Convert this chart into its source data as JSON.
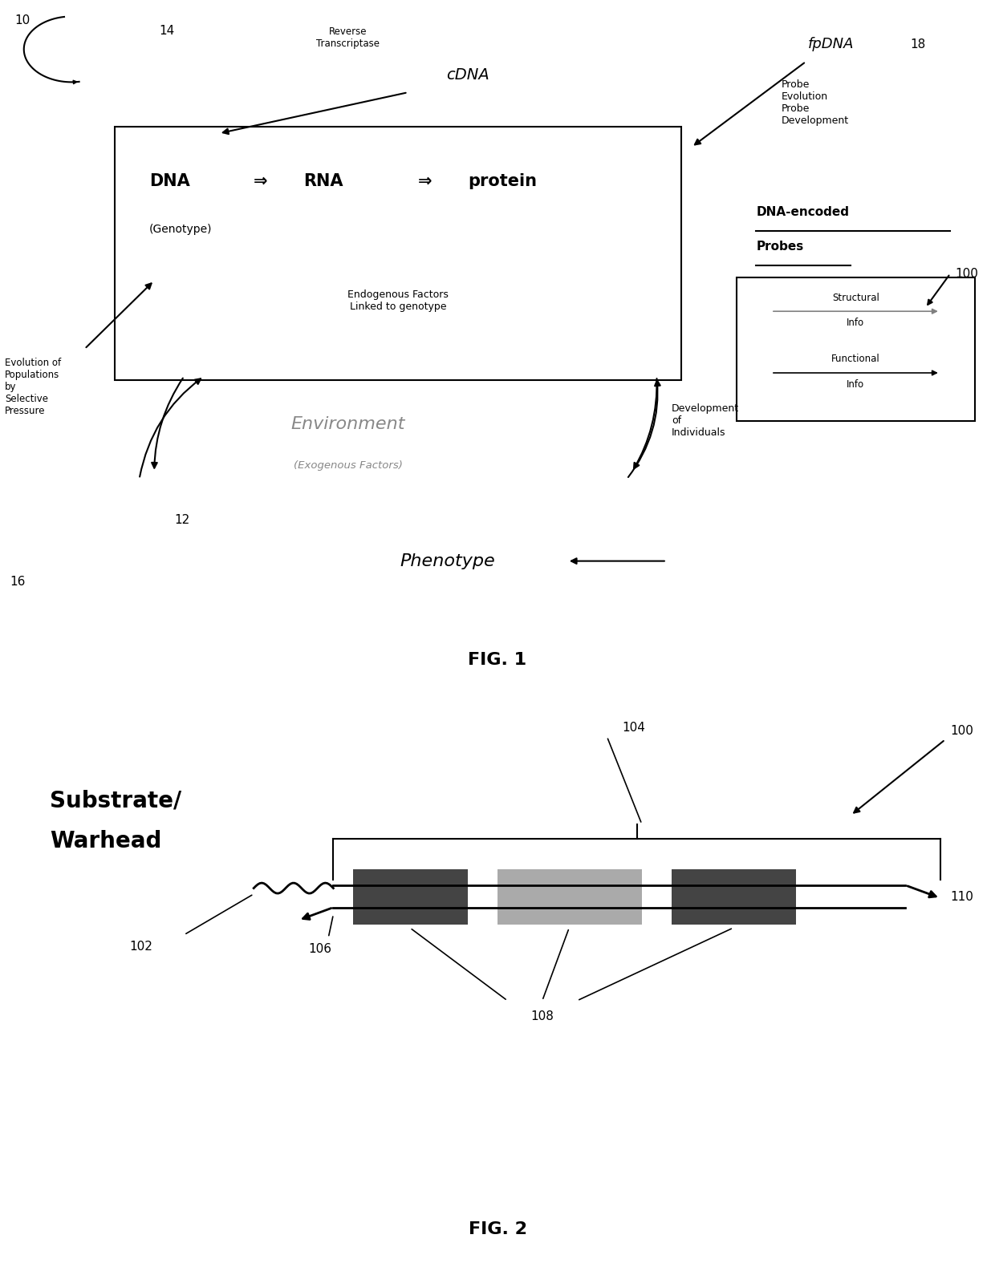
{
  "fig1": {
    "title": "FIG. 1",
    "label_10": "10",
    "label_14": "14",
    "label_16": "16",
    "label_12": "12",
    "label_18": "18",
    "label_100": "100",
    "dna_arrow1": "⇒",
    "dna_arrow2": "⇒",
    "box_dna": "DNA",
    "box_rna": "RNA",
    "box_protein": "protein",
    "box_genotype": "(Genotype)",
    "box_endo": "Endogenous Factors\nLinked to genotype",
    "cdna_label": "cDNA",
    "cdna_sub": "Reverse\nTranscriptase",
    "fpdna_label": "fpDNA",
    "env_label": "Environment",
    "env_sub": "(Exogenous Factors)",
    "pheno_label": "Phenotype",
    "evol_label": "Evolution of\nPopulations\nby\nSelective\nPressure",
    "dev_label": "Development\nof\nIndividuals",
    "probe_label": "Probe\nEvolution\nProbe\nDevelopment",
    "dna_encoded": "DNA-encoded",
    "probes": "Probes",
    "struct_label": "Structural\nInfo",
    "func_label": "Functional\nInfo"
  },
  "fig2": {
    "title": "FIG. 2",
    "label_100": "100",
    "label_102": "102",
    "label_104": "104",
    "label_106": "106",
    "label_108": "108",
    "label_110": "110",
    "substrate_line1": "Substrate/",
    "substrate_line2": "Warhead",
    "dark_color": "#444444",
    "medium_color": "#888888",
    "light_color": "#aaaaaa"
  },
  "bg_color": "#ffffff",
  "text_color": "#000000"
}
